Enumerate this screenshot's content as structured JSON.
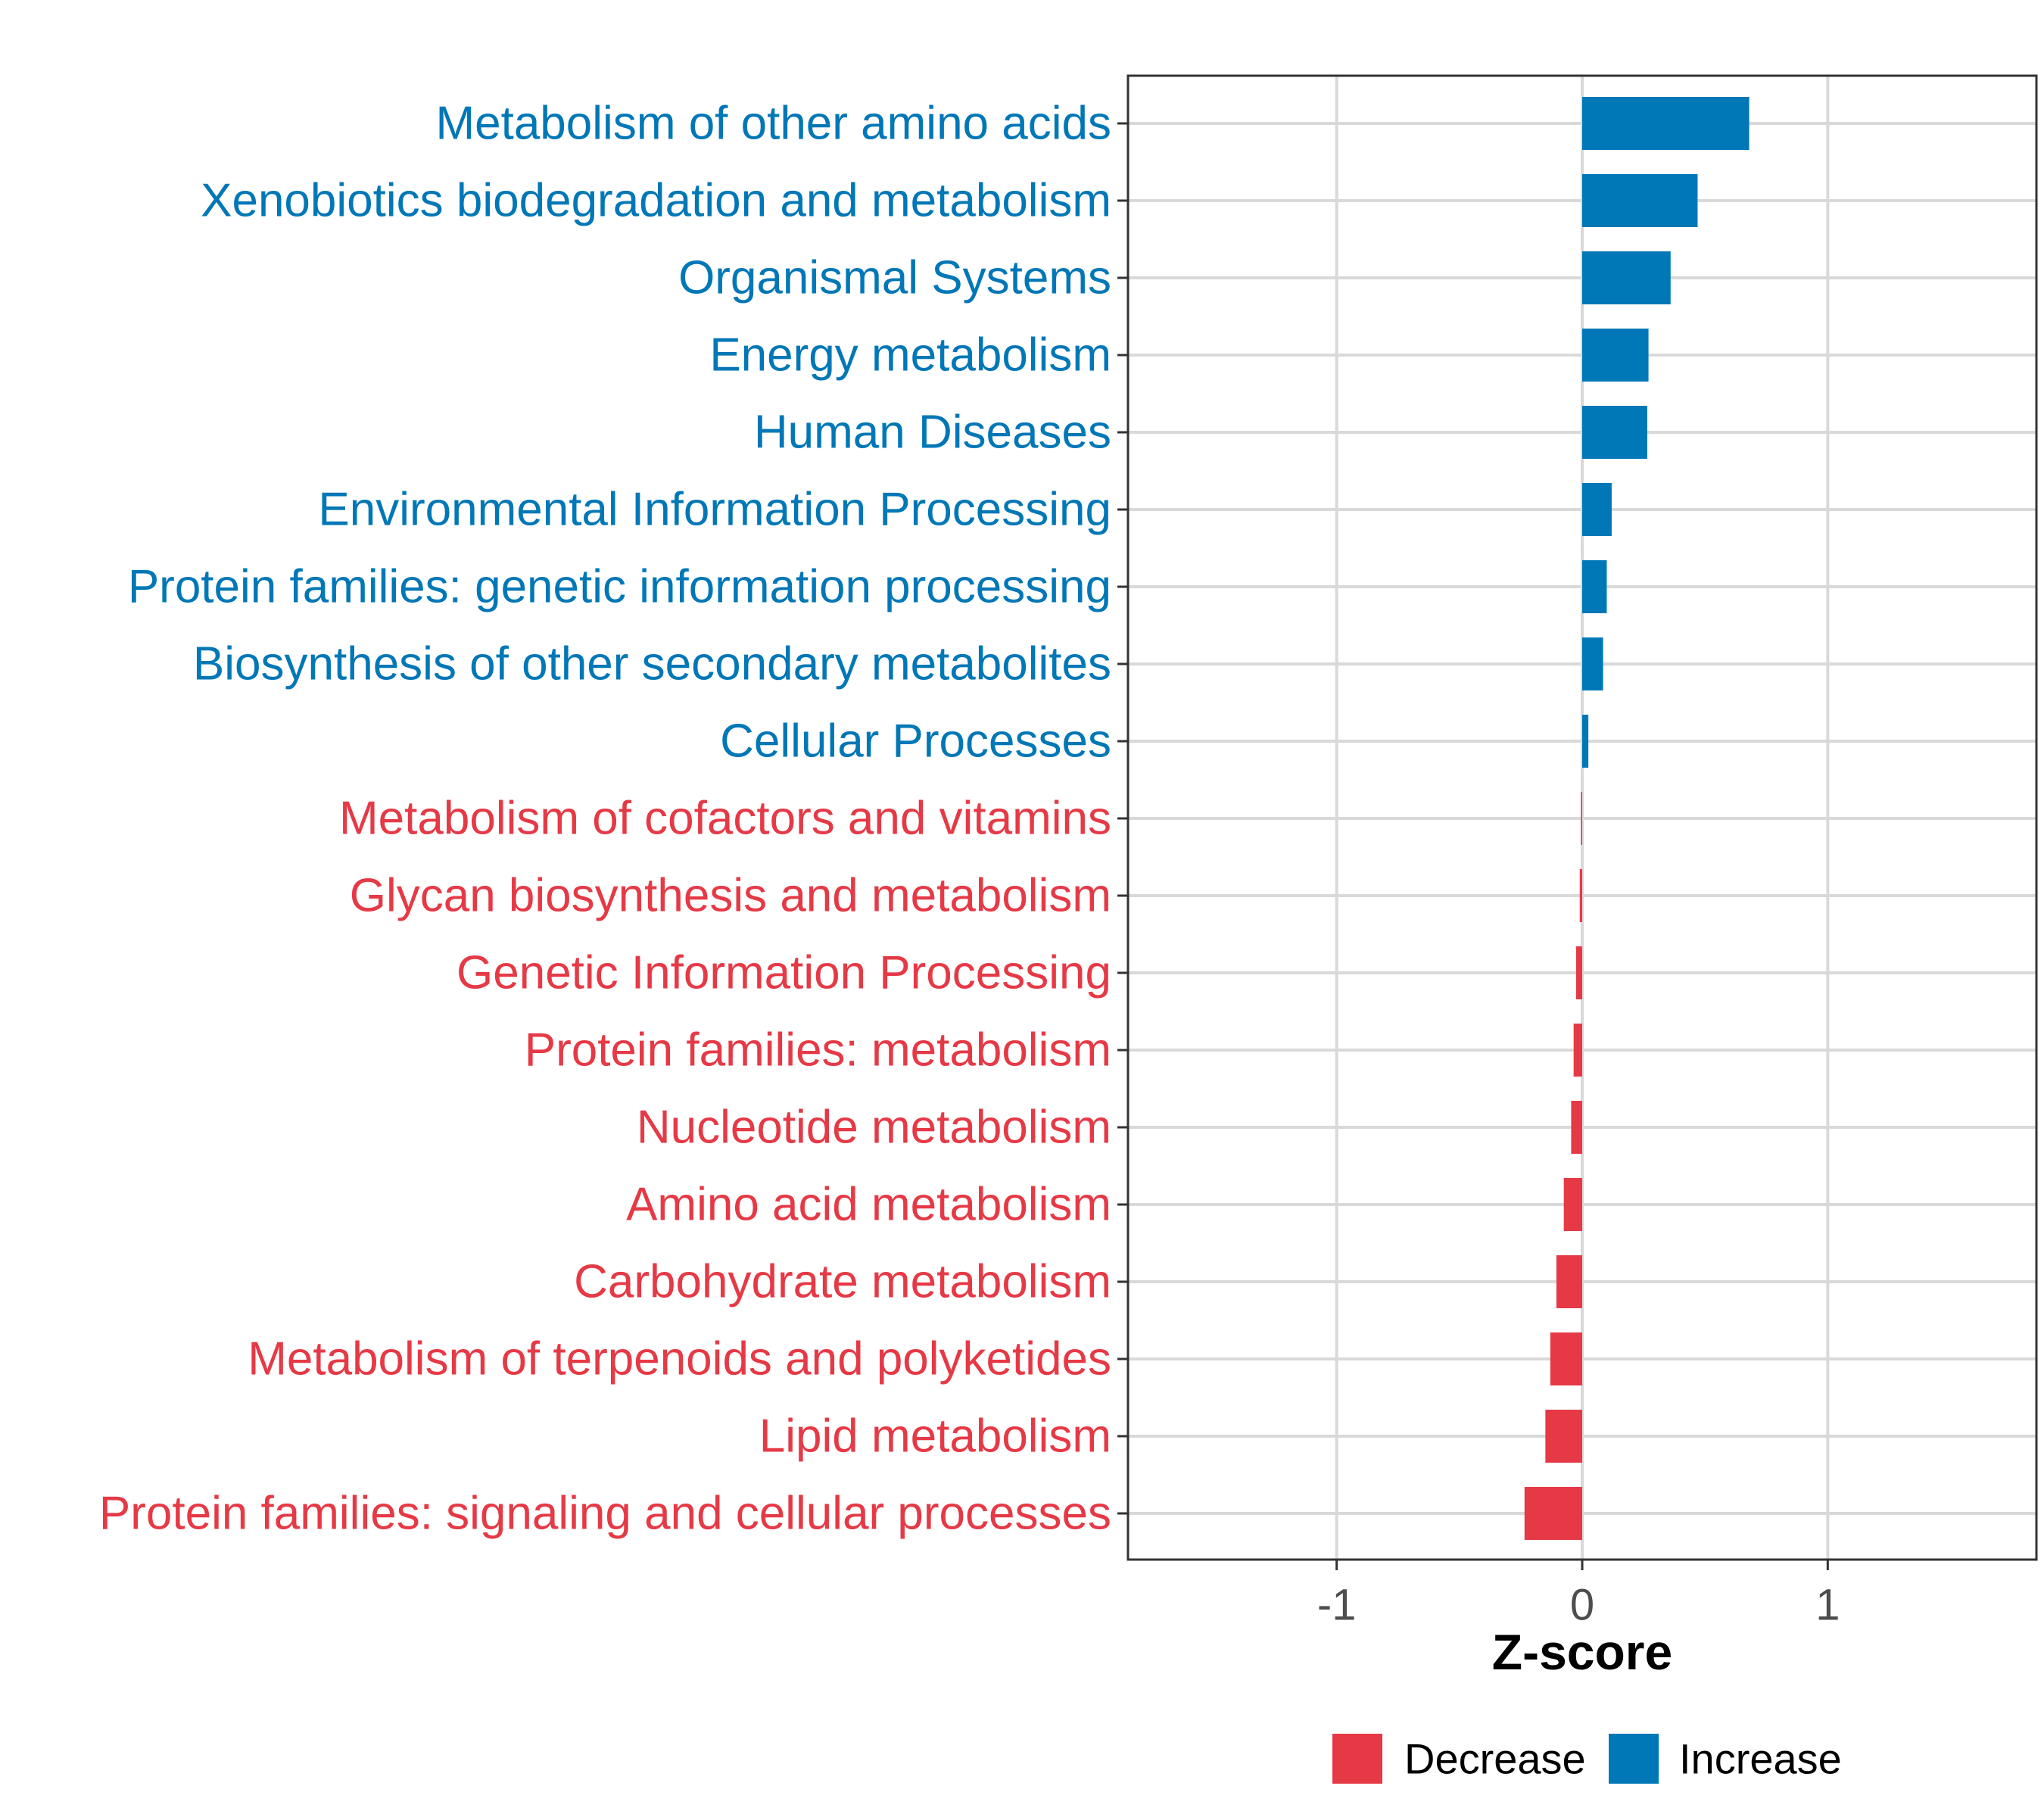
{
  "colors": {
    "increase": "#0077b6",
    "decrease": "#e63946",
    "grid": "#d9d9d9",
    "panel_border": "#333333",
    "background": "#ffffff"
  },
  "chart_data": {
    "type": "bar",
    "orientation": "horizontal",
    "xlabel": "Z-score",
    "ylabel": "",
    "xlim": [
      -1.85,
      1.85
    ],
    "x_ticks": [
      -1,
      0,
      1
    ],
    "x_tick_labels": [
      "-1",
      "0",
      "1"
    ],
    "grid": true,
    "legend_position": "bottom",
    "categories": [
      "Metabolism of other amino acids",
      "Xenobiotics biodegradation and metabolism",
      "Organismal Systems",
      "Energy metabolism",
      "Human Diseases",
      "Environmental Information Processing",
      "Protein families: genetic information processing",
      "Biosynthesis of other secondary metabolites",
      "Cellular Processes",
      "Metabolism of cofactors and vitamins",
      "Glycan biosynthesis and metabolism",
      "Genetic Information Processing",
      "Protein families: metabolism",
      "Nucleotide metabolism",
      "Amino acid metabolism",
      "Carbohydrate metabolism",
      "Metabolism of terpenoids and polyketides",
      "Lipid metabolism",
      "Protein families: signaling and cellular processes"
    ],
    "values": [
      0.68,
      0.47,
      0.36,
      0.27,
      0.265,
      0.12,
      0.1,
      0.085,
      0.025,
      -0.005,
      -0.01,
      -0.025,
      -0.035,
      -0.045,
      -0.075,
      -0.105,
      -0.13,
      -0.15,
      -0.235
    ],
    "groups": [
      "Increase",
      "Increase",
      "Increase",
      "Increase",
      "Increase",
      "Increase",
      "Increase",
      "Increase",
      "Increase",
      "Decrease",
      "Decrease",
      "Decrease",
      "Decrease",
      "Decrease",
      "Decrease",
      "Decrease",
      "Decrease",
      "Decrease",
      "Decrease"
    ],
    "legend": [
      {
        "name": "Decrease",
        "color": "#e63946"
      },
      {
        "name": "Increase",
        "color": "#0077b6"
      }
    ]
  }
}
